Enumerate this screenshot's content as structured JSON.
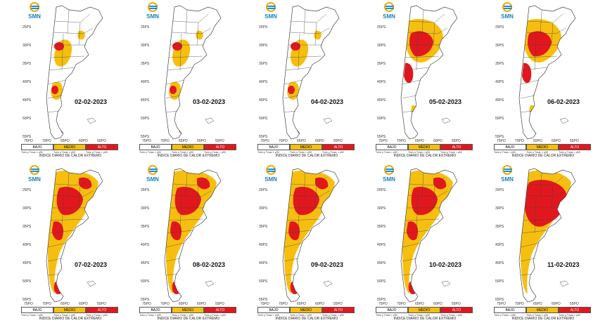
{
  "logo": {
    "text": "SMN",
    "icon": "smn-sun-logo-icon"
  },
  "colors": {
    "bajo": "#ffffff",
    "medio": "#f6bf0f",
    "alto": "#e2171d",
    "border": "#444444"
  },
  "legend": {
    "bajo": "BAJO",
    "medio": "MEDIO",
    "alto": "ALTO",
    "sub_bajo": "Tmin y Tmax < p90",
    "sub_medio": "Tmin o Tmax > p90",
    "sub_alto": "Tmin y Tmax > p90",
    "title_line1": "INDICE DIARIO DE",
    "title_line2": "CALOR EXTREMO"
  },
  "lat_labels": [
    "25PS",
    "30PS",
    "35PS",
    "40PS",
    "45PS",
    "50PS",
    "55PS"
  ],
  "lon_labels": [
    "75PO",
    "70PO",
    "65PO",
    "60PO",
    "55PO"
  ],
  "maps": [
    {
      "date": "02-02-2023",
      "heat_level": "low"
    },
    {
      "date": "03-02-2023",
      "heat_level": "low"
    },
    {
      "date": "04-02-2023",
      "heat_level": "low"
    },
    {
      "date": "05-02-2023",
      "heat_level": "medium"
    },
    {
      "date": "06-02-2023",
      "heat_level": "medium"
    },
    {
      "date": "07-02-2023",
      "heat_level": "high"
    },
    {
      "date": "08-02-2023",
      "heat_level": "high"
    },
    {
      "date": "09-02-2023",
      "heat_level": "high"
    },
    {
      "date": "10-02-2023",
      "heat_level": "high"
    },
    {
      "date": "11-02-2023",
      "heat_level": "very-high"
    }
  ]
}
